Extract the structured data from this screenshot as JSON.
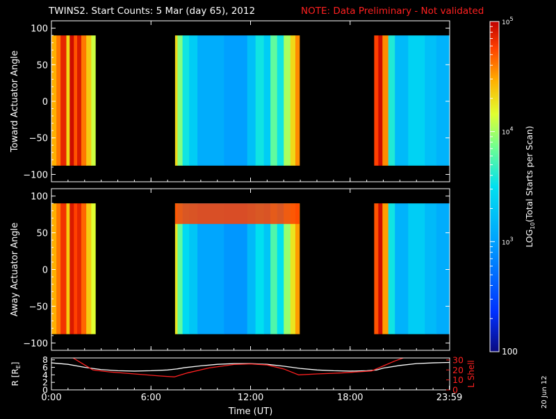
{
  "header": {
    "title": "TWINS2. Start Counts:  5 Mar (day  65), 2012",
    "note": "NOTE: Data Preliminary - Not validated",
    "note_color": "#ff2020"
  },
  "date_stamp": "20 Jun 12",
  "chart_data": [
    {
      "type": "heatmap",
      "name": "toward-panel",
      "ylabel": "Toward Actuator Angle",
      "ylim": [
        -110,
        110
      ],
      "yticks": [
        "100",
        "50",
        "0",
        "−50",
        "−100"
      ],
      "ytick_values": [
        100,
        50,
        0,
        -50,
        -100
      ],
      "data_range_deg": [
        -88,
        90
      ],
      "xlim_hours": [
        0,
        24
      ],
      "data_intervals_hours": [
        [
          0.0,
          2.65
        ],
        [
          7.45,
          14.95
        ],
        [
          19.45,
          24.0
        ]
      ],
      "bands_log10": [
        {
          "t": [
            0.0,
            0.3
          ],
          "v": 4.45
        },
        {
          "t": [
            0.3,
            0.55
          ],
          "v": 4.6
        },
        {
          "t": [
            0.55,
            0.9
          ],
          "v": 4.85
        },
        {
          "t": [
            0.9,
            1.1
          ],
          "v": 4.3
        },
        {
          "t": [
            1.1,
            1.35
          ],
          "v": 4.95
        },
        {
          "t": [
            1.35,
            1.55
          ],
          "v": 4.7
        },
        {
          "t": [
            1.55,
            1.8
          ],
          "v": 4.9
        },
        {
          "t": [
            1.8,
            2.1
          ],
          "v": 4.6
        },
        {
          "t": [
            2.1,
            2.4
          ],
          "v": 4.35
        },
        {
          "t": [
            2.4,
            2.65
          ],
          "v": 4.1
        },
        {
          "t": [
            7.45,
            7.6
          ],
          "v": 4.3
        },
        {
          "t": [
            7.6,
            7.9
          ],
          "v": 3.9
        },
        {
          "t": [
            7.9,
            8.3
          ],
          "v": 3.55
        },
        {
          "t": [
            8.3,
            8.8
          ],
          "v": 3.35
        },
        {
          "t": [
            8.8,
            10.4
          ],
          "v": 3.1
        },
        {
          "t": [
            10.4,
            11.8
          ],
          "v": 3.0
        },
        {
          "t": [
            11.8,
            12.3
          ],
          "v": 3.25
        },
        {
          "t": [
            12.3,
            12.8
          ],
          "v": 3.55
        },
        {
          "t": [
            12.8,
            13.2
          ],
          "v": 3.35
        },
        {
          "t": [
            13.2,
            13.6
          ],
          "v": 3.8
        },
        {
          "t": [
            13.6,
            14.0
          ],
          "v": 3.55
        },
        {
          "t": [
            14.0,
            14.4
          ],
          "v": 4.0
        },
        {
          "t": [
            14.4,
            14.7
          ],
          "v": 4.3
        },
        {
          "t": [
            14.7,
            14.95
          ],
          "v": 4.55
        },
        {
          "t": [
            19.45,
            19.7
          ],
          "v": 4.75
        },
        {
          "t": [
            19.7,
            19.95
          ],
          "v": 4.95
        },
        {
          "t": [
            19.95,
            20.3
          ],
          "v": 4.55
        },
        {
          "t": [
            20.3,
            20.7
          ],
          "v": 3.6
        },
        {
          "t": [
            20.7,
            21.5
          ],
          "v": 3.2
        },
        {
          "t": [
            21.5,
            22.5
          ],
          "v": 3.4
        },
        {
          "t": [
            22.5,
            23.2
          ],
          "v": 3.25
        },
        {
          "t": [
            23.2,
            24.0
          ],
          "v": 3.15
        }
      ]
    },
    {
      "type": "heatmap",
      "name": "away-panel",
      "ylabel": "Away Actuator Angle",
      "ylim": [
        -110,
        110
      ],
      "yticks": [
        "100",
        "50",
        "0",
        "−50",
        "−100"
      ],
      "ytick_values": [
        100,
        50,
        0,
        -50,
        -100
      ],
      "data_range_deg": [
        -88,
        90
      ],
      "xlim_hours": [
        0,
        24
      ],
      "data_intervals_hours": [
        [
          0.0,
          2.65
        ],
        [
          7.45,
          14.95
        ],
        [
          19.45,
          24.0
        ]
      ],
      "bands_log10": [
        {
          "t": [
            0.0,
            0.3
          ],
          "v": 4.45
        },
        {
          "t": [
            0.3,
            0.55
          ],
          "v": 4.6
        },
        {
          "t": [
            0.55,
            0.9
          ],
          "v": 4.8
        },
        {
          "t": [
            0.9,
            1.1
          ],
          "v": 4.35
        },
        {
          "t": [
            1.1,
            1.35
          ],
          "v": 4.9
        },
        {
          "t": [
            1.35,
            1.55
          ],
          "v": 4.75
        },
        {
          "t": [
            1.55,
            1.8
          ],
          "v": 4.85
        },
        {
          "t": [
            1.8,
            2.1
          ],
          "v": 4.65
        },
        {
          "t": [
            2.1,
            2.4
          ],
          "v": 4.35
        },
        {
          "t": [
            2.4,
            2.65
          ],
          "v": 4.15
        },
        {
          "t": [
            7.45,
            7.6
          ],
          "v": 4.25
        },
        {
          "t": [
            7.6,
            7.9
          ],
          "v": 3.8
        },
        {
          "t": [
            7.9,
            8.3
          ],
          "v": 3.45
        },
        {
          "t": [
            8.3,
            8.8
          ],
          "v": 3.3
        },
        {
          "t": [
            8.8,
            10.4
          ],
          "v": 3.05
        },
        {
          "t": [
            10.4,
            11.8
          ],
          "v": 2.95
        },
        {
          "t": [
            11.8,
            12.3
          ],
          "v": 3.2
        },
        {
          "t": [
            12.3,
            12.8
          ],
          "v": 3.5
        },
        {
          "t": [
            12.8,
            13.2
          ],
          "v": 3.3
        },
        {
          "t": [
            13.2,
            13.6
          ],
          "v": 3.75
        },
        {
          "t": [
            13.6,
            14.0
          ],
          "v": 3.5
        },
        {
          "t": [
            14.0,
            14.4
          ],
          "v": 3.95
        },
        {
          "t": [
            14.4,
            14.7
          ],
          "v": 4.25
        },
        {
          "t": [
            14.7,
            14.95
          ],
          "v": 4.5
        },
        {
          "t": [
            19.45,
            19.7
          ],
          "v": 4.7
        },
        {
          "t": [
            19.7,
            19.95
          ],
          "v": 4.95
        },
        {
          "t": [
            19.95,
            20.3
          ],
          "v": 4.5
        },
        {
          "t": [
            20.3,
            20.7
          ],
          "v": 3.55
        },
        {
          "t": [
            20.7,
            21.5
          ],
          "v": 3.15
        },
        {
          "t": [
            21.5,
            22.5
          ],
          "v": 3.35
        },
        {
          "t": [
            22.5,
            23.2
          ],
          "v": 3.2
        },
        {
          "t": [
            23.2,
            24.0
          ],
          "v": 3.1
        }
      ],
      "hot_strip": {
        "t": [
          7.45,
          14.95
        ],
        "deg": [
          62,
          90
        ],
        "v": 4.75
      }
    },
    {
      "type": "line",
      "name": "ephemeris-panel",
      "xlabel": "Time (UT)",
      "xticks": [
        "0:00",
        "6:00",
        "12:00",
        "18:00",
        "23:59"
      ],
      "xtick_hours": [
        0,
        6,
        12,
        18,
        23.98
      ],
      "xlim_hours": [
        0,
        24
      ],
      "ylabel_left": "R [R",
      "ylabel_left_sub": "E",
      "ylabel_left_end": "]",
      "ylim_left": [
        0,
        8.5
      ],
      "yticks_left": [
        "0",
        "2",
        "4",
        "6",
        "8"
      ],
      "ytick_left_values": [
        0,
        2,
        4,
        6,
        8
      ],
      "ylabel_right": "L Shell",
      "ylim_right": [
        0,
        32
      ],
      "yticks_right": [
        "0",
        "10",
        "20",
        "30"
      ],
      "ytick_right_values": [
        0,
        10,
        20,
        30
      ],
      "series": [
        {
          "axis": "left",
          "color": "#ffffff",
          "x": [
            0,
            1,
            2,
            3,
            4,
            5,
            6,
            7,
            7.6,
            8,
            9,
            10,
            11,
            12,
            13,
            14,
            14.5,
            15,
            16,
            17,
            18,
            19,
            19.6,
            20,
            21,
            22,
            23,
            24
          ],
          "y": [
            7.2,
            6.8,
            6.0,
            5.4,
            5.1,
            5.0,
            5.1,
            5.3,
            5.6,
            5.9,
            6.4,
            6.8,
            7.0,
            7.0,
            6.8,
            6.3,
            6.0,
            5.7,
            5.3,
            5.1,
            5.0,
            5.1,
            5.3,
            5.8,
            6.5,
            7.0,
            7.2,
            7.3
          ]
        },
        {
          "axis": "right",
          "color": "#ff2020",
          "x": [
            1.3,
            1.8,
            2.5,
            3.5,
            5,
            6.5,
            7.4,
            8.2,
            9.5,
            11,
            12,
            13,
            14,
            14.9,
            16,
            17.5,
            19.3,
            20,
            20.7,
            21.2
          ],
          "y": [
            32,
            27,
            20,
            18,
            16,
            14,
            13,
            17,
            22,
            25.5,
            26,
            25,
            21,
            15,
            16,
            17,
            19,
            24,
            29,
            32
          ]
        }
      ]
    }
  ],
  "colorbar": {
    "label": "LOG",
    "label_sub": "10",
    "label_rest": "(Total Starts per Scan)",
    "log_range": [
      2,
      5
    ],
    "tick_base": "10",
    "ticks": [
      {
        "value": 5,
        "base": "10",
        "exp": "5"
      },
      {
        "value": 4,
        "base": "10",
        "exp": "4"
      },
      {
        "value": 3,
        "base": "10",
        "exp": "3"
      },
      {
        "value": 2,
        "base": "100",
        "exp": ""
      }
    ]
  }
}
